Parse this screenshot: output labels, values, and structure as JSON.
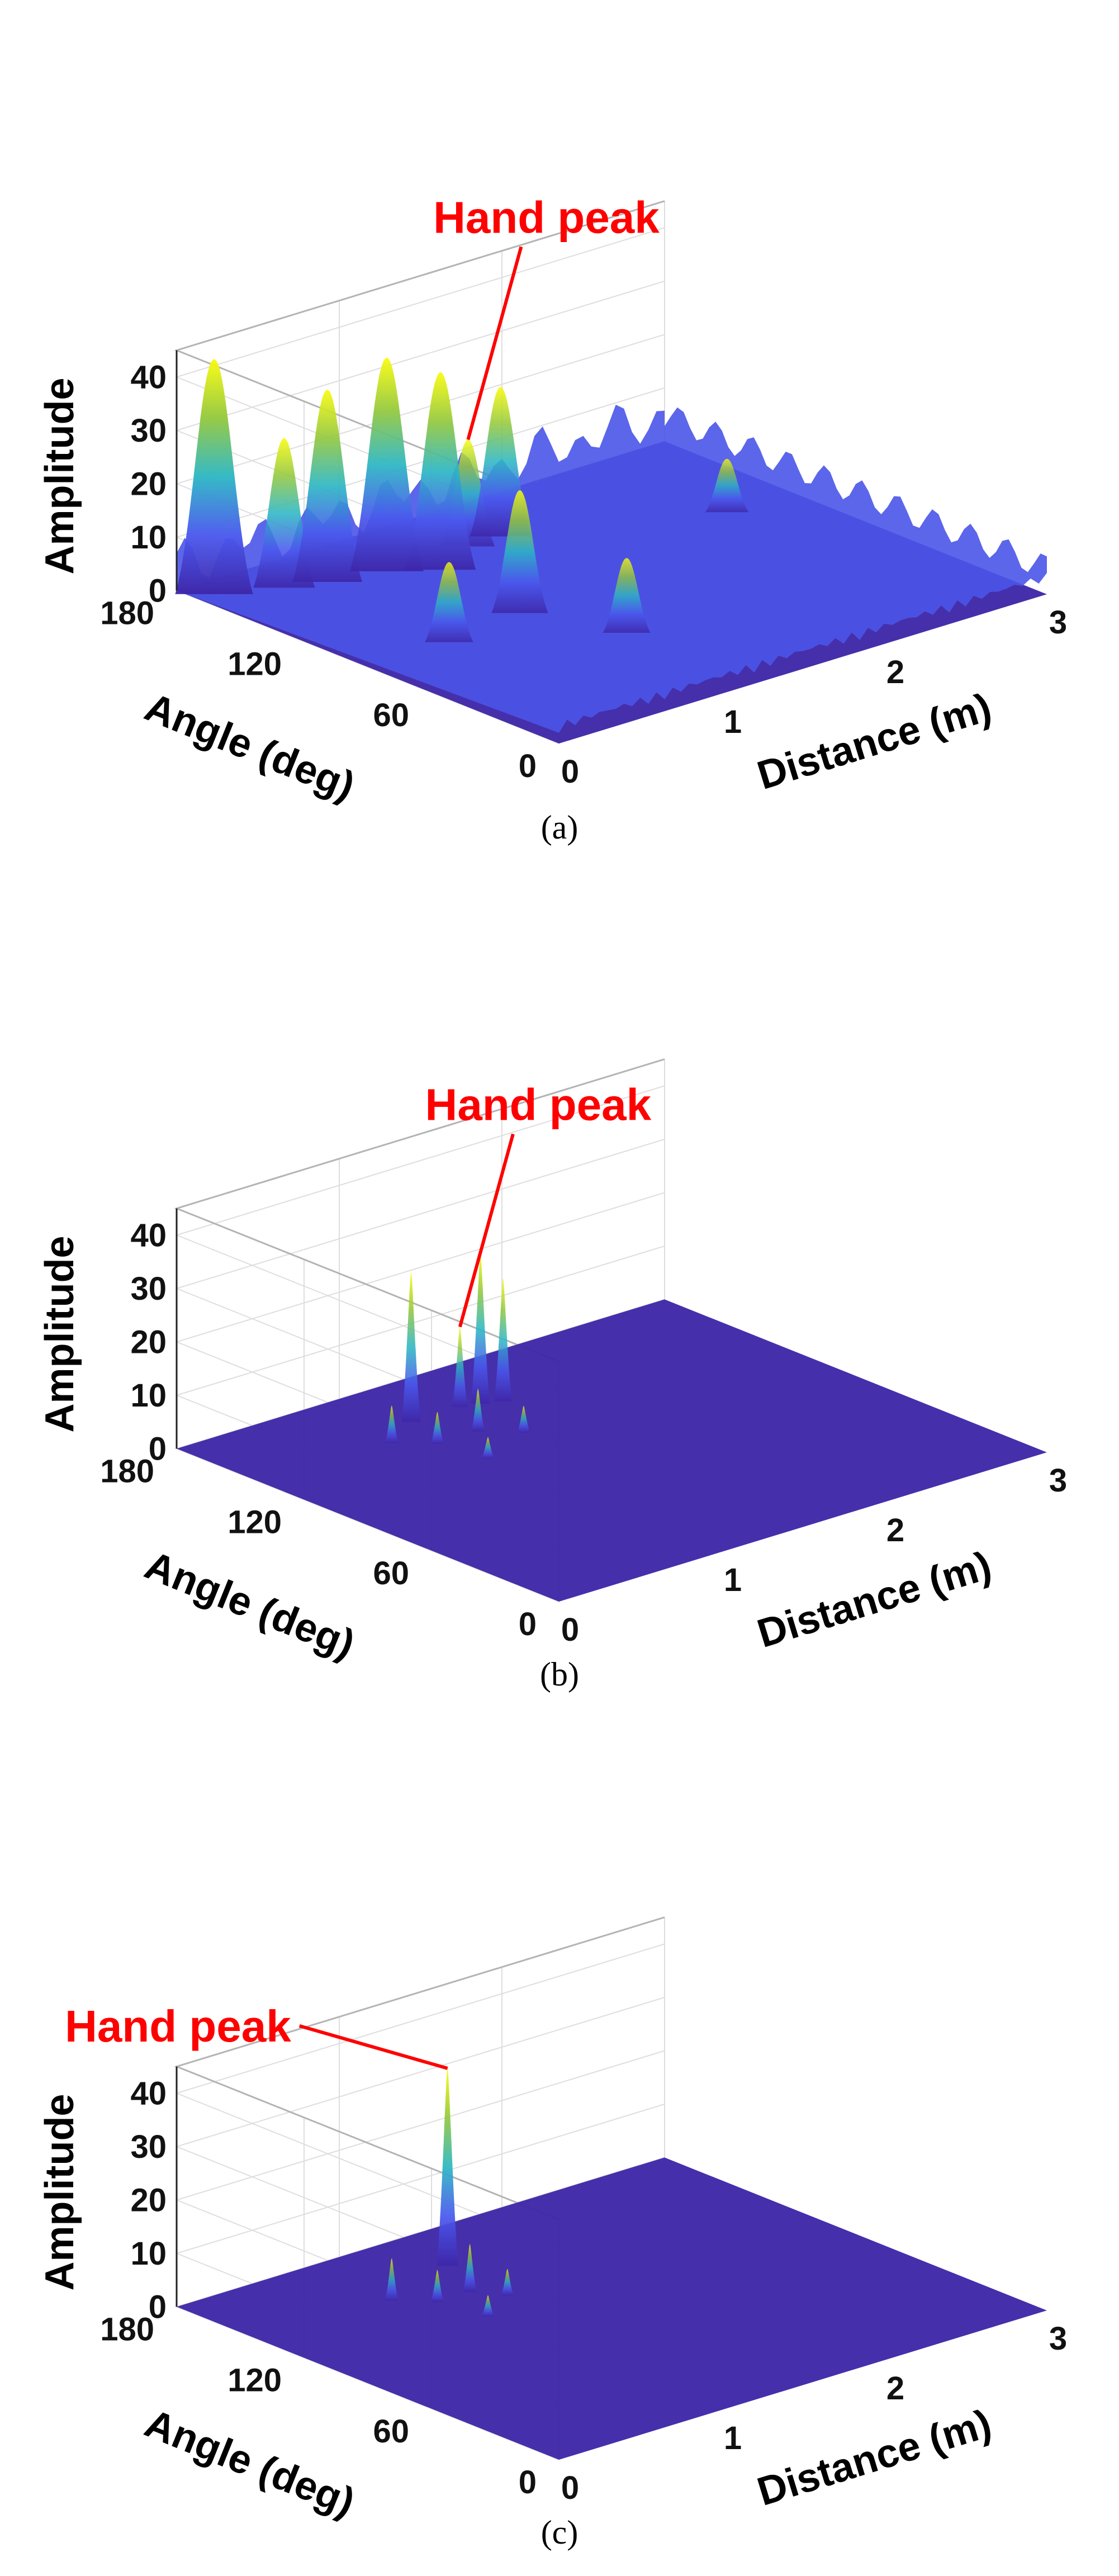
{
  "colors": {
    "annotation": "#ff0000",
    "floor": "#3e26a8",
    "surface_low": "#3e26a8",
    "surface_mid": "#2db7c4",
    "surface_high": "#f9fb0e"
  },
  "chart_data": [
    {
      "type": "surface3d",
      "panel": "a",
      "caption": "(a)",
      "xlabel": "Distance (m)",
      "ylabel": "Angle (deg)",
      "zlabel": "Amplitude",
      "xlim": [
        0,
        3
      ],
      "ylim": [
        0,
        180
      ],
      "zlim": [
        0,
        45
      ],
      "xticks": [
        "0",
        "1",
        "2",
        "3"
      ],
      "yticks": [
        "0",
        "60",
        "120",
        "180"
      ],
      "zticks": [
        "0",
        "10",
        "20",
        "30",
        "40"
      ],
      "baseline": 5,
      "peaks": [
        {
          "x": 0.1,
          "y": 170,
          "amplitude": 44
        },
        {
          "x": 0.4,
          "y": 160,
          "amplitude": 28
        },
        {
          "x": 0.6,
          "y": 155,
          "amplitude": 36
        },
        {
          "x": 0.9,
          "y": 150,
          "amplitude": 40
        },
        {
          "x": 1.1,
          "y": 140,
          "amplitude": 37
        },
        {
          "x": 1.0,
          "y": 95,
          "amplitude": 23
        },
        {
          "x": 1.6,
          "y": 150,
          "amplitude": 28
        },
        {
          "x": 1.4,
          "y": 150,
          "amplitude": 20
        },
        {
          "x": 0.5,
          "y": 90,
          "amplitude": 15
        },
        {
          "x": 1.2,
          "y": 60,
          "amplitude": 14
        },
        {
          "x": 2.6,
          "y": 120,
          "amplitude": 10
        }
      ],
      "annotation": {
        "text": "Hand peak",
        "x": 1.4,
        "y": 150,
        "amplitude": 20
      }
    },
    {
      "type": "surface3d",
      "panel": "b",
      "caption": "(b)",
      "xlabel": "Distance (m)",
      "ylabel": "Angle (deg)",
      "zlabel": "Amplitude",
      "xlim": [
        0,
        3
      ],
      "ylim": [
        0,
        180
      ],
      "zlim": [
        0,
        45
      ],
      "xticks": [
        "0",
        "1",
        "2",
        "3"
      ],
      "yticks": [
        "0",
        "60",
        "120",
        "180"
      ],
      "zticks": [
        "0",
        "10",
        "20",
        "30",
        "40"
      ],
      "baseline": 0,
      "peaks": [
        {
          "x": 1.05,
          "y": 150,
          "amplitude": 28
        },
        {
          "x": 1.35,
          "y": 150,
          "amplitude": 15
        },
        {
          "x": 1.45,
          "y": 148,
          "amplitude": 28
        },
        {
          "x": 1.55,
          "y": 145,
          "amplitude": 23
        },
        {
          "x": 0.8,
          "y": 140,
          "amplitude": 7
        },
        {
          "x": 0.95,
          "y": 130,
          "amplitude": 6
        },
        {
          "x": 1.2,
          "y": 130,
          "amplitude": 8
        },
        {
          "x": 1.35,
          "y": 120,
          "amplitude": 5
        },
        {
          "x": 1.0,
          "y": 110,
          "amplitude": 4
        }
      ],
      "annotation": {
        "text": "Hand peak",
        "x": 1.35,
        "y": 150,
        "amplitude": 15
      }
    },
    {
      "type": "surface3d",
      "panel": "c",
      "caption": "(c)",
      "xlabel": "Distance (m)",
      "ylabel": "Angle (deg)",
      "zlabel": "Amplitude",
      "xlim": [
        0,
        3
      ],
      "ylim": [
        0,
        180
      ],
      "zlim": [
        0,
        45
      ],
      "xticks": [
        "0",
        "1",
        "2",
        "3"
      ],
      "yticks": [
        "0",
        "60",
        "120",
        "180"
      ],
      "zticks": [
        "0",
        "10",
        "20",
        "30",
        "40"
      ],
      "baseline": 0,
      "peaks": [
        {
          "x": 1.3,
          "y": 152,
          "amplitude": 37
        },
        {
          "x": 0.8,
          "y": 140,
          "amplitude": 8
        },
        {
          "x": 0.95,
          "y": 130,
          "amplitude": 6
        },
        {
          "x": 1.15,
          "y": 130,
          "amplitude": 9
        },
        {
          "x": 1.25,
          "y": 120,
          "amplitude": 5
        },
        {
          "x": 1.0,
          "y": 110,
          "amplitude": 4
        }
      ],
      "annotation": {
        "text": "Hand peak",
        "x": 1.3,
        "y": 152,
        "amplitude": 37
      }
    }
  ]
}
